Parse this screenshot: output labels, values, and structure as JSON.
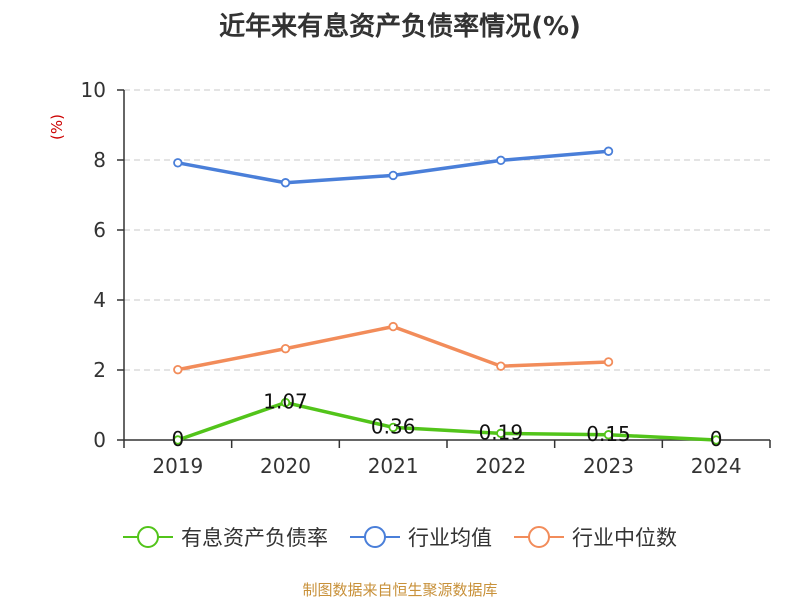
{
  "title": "近年来有息资产负债率情况(%)",
  "source": "制图数据来自恒生聚源数据库",
  "chart_data": {
    "type": "line",
    "title": "近年来有息资产负债率情况(%)",
    "ylabel": "(%)",
    "xlabel": "",
    "categories": [
      "2019",
      "2020",
      "2021",
      "2022",
      "2023",
      "2024"
    ],
    "ylim": [
      0,
      10
    ],
    "yticks": [
      0,
      2,
      4,
      6,
      8,
      10
    ],
    "grid": true,
    "legend_position": "bottom",
    "series": [
      {
        "name": "有息资产负债率",
        "color": "#52c41a",
        "values": [
          0,
          1.07,
          0.36,
          0.19,
          0.15,
          0
        ],
        "labels": [
          "0",
          "1.07",
          "0.36",
          "0.19",
          "0.15",
          "0"
        ],
        "show_markers": [
          true,
          true,
          true,
          true,
          true,
          true
        ]
      },
      {
        "name": "行业均值",
        "color": "#4a7fd9",
        "values": [
          7.92,
          7.35,
          7.56,
          7.99,
          8.25,
          null
        ],
        "show_markers": [
          true,
          true,
          true,
          true,
          true
        ]
      },
      {
        "name": "行业中位数",
        "color": "#f28c5a",
        "values": [
          2.01,
          2.61,
          3.24,
          2.11,
          2.23,
          null
        ],
        "show_markers": [
          true,
          true,
          true,
          true,
          true
        ]
      }
    ]
  }
}
